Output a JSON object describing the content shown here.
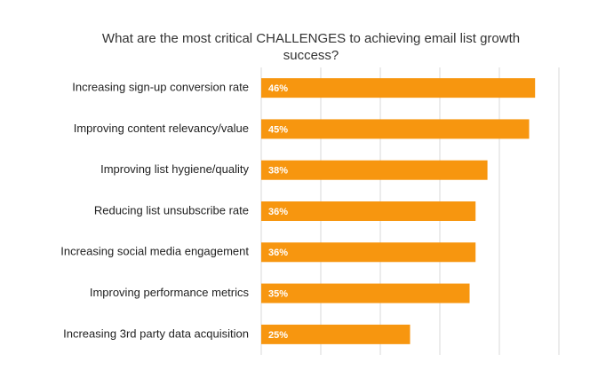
{
  "chart_data": {
    "type": "hbar",
    "title": "What are the most critical CHALLENGES to achieving email list growth success?",
    "categories": [
      "Increasing sign-up conversion rate",
      "Improving content relevancy/value",
      "Improving list hygiene/quality",
      "Reducing list unsubscribe rate",
      "Increasing social media engagement",
      "Improving performance metrics",
      "Increasing 3rd party data acquisition"
    ],
    "values": [
      46,
      45,
      38,
      36,
      36,
      35,
      25
    ],
    "value_labels": [
      "46%",
      "45%",
      "38%",
      "36%",
      "36%",
      "35%",
      "25%"
    ],
    "color": "#f7960f",
    "xlim": [
      0,
      50
    ],
    "xticks": [
      0,
      10,
      20,
      30,
      40,
      50
    ],
    "grid": true
  }
}
